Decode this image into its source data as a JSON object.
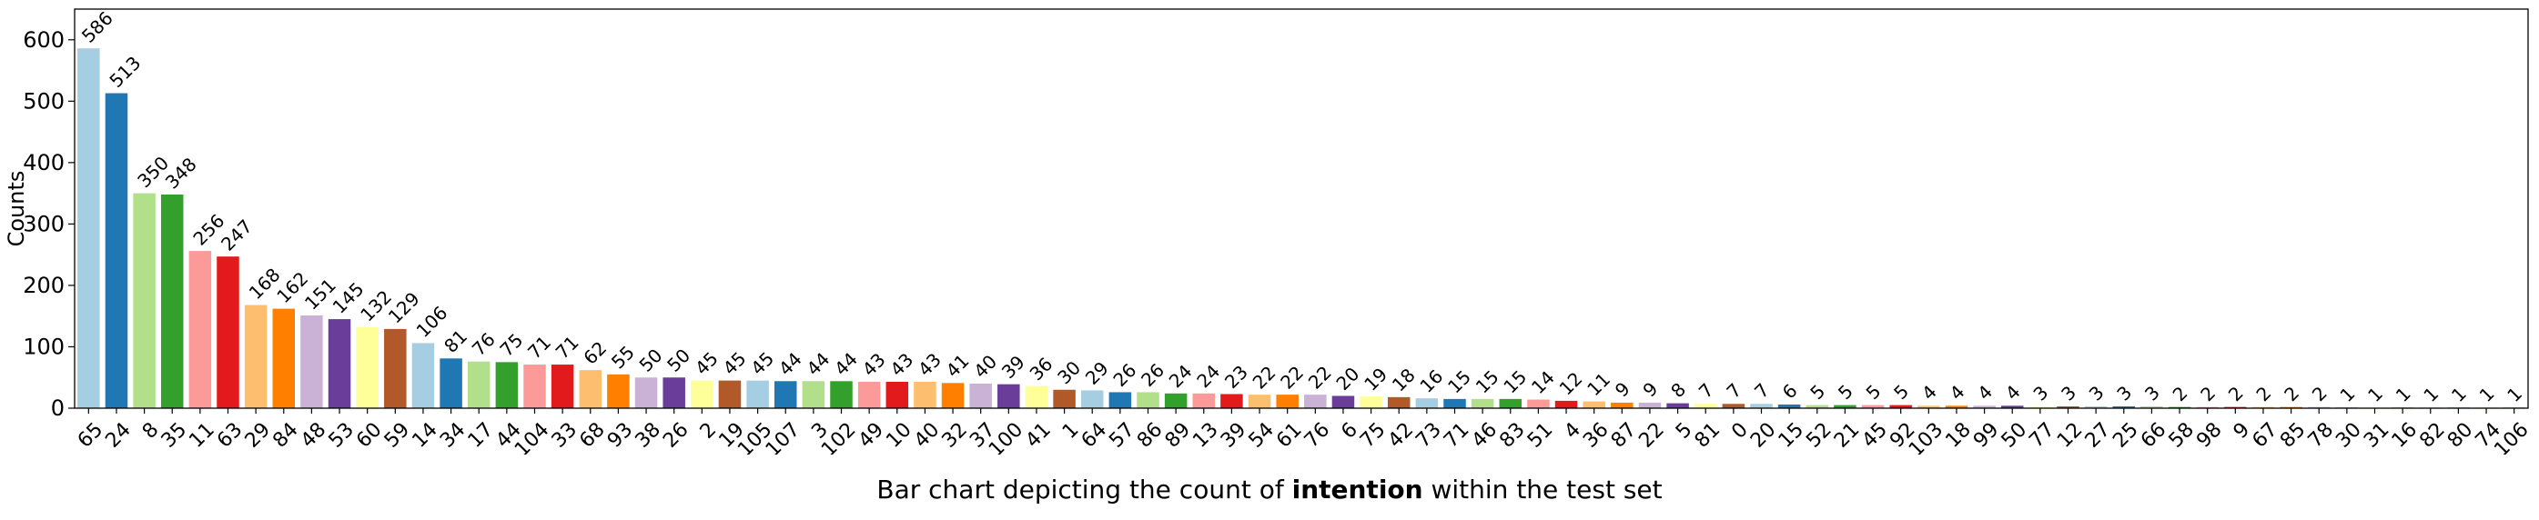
{
  "chart_data": {
    "type": "bar",
    "ylabel": "Counts",
    "xlabel": "",
    "ylim": [
      0,
      650
    ],
    "yticks": [
      0,
      100,
      200,
      300,
      400,
      500,
      600
    ],
    "grid": false,
    "categories": [
      "65",
      "24",
      "8",
      "35",
      "11",
      "63",
      "29",
      "84",
      "48",
      "53",
      "60",
      "59",
      "14",
      "34",
      "17",
      "44",
      "104",
      "33",
      "68",
      "93",
      "38",
      "26",
      "2",
      "19",
      "105",
      "107",
      "3",
      "102",
      "49",
      "10",
      "40",
      "32",
      "37",
      "100",
      "41",
      "1",
      "64",
      "57",
      "86",
      "89",
      "13",
      "39",
      "54",
      "61",
      "76",
      "6",
      "75",
      "42",
      "73",
      "71",
      "46",
      "83",
      "51",
      "4",
      "36",
      "87",
      "22",
      "5",
      "81",
      "0",
      "20",
      "15",
      "52",
      "21",
      "45",
      "92",
      "103",
      "18",
      "99",
      "50",
      "77",
      "12",
      "27",
      "25",
      "66",
      "58",
      "98",
      "9",
      "67",
      "85",
      "78",
      "30",
      "31",
      "16",
      "82",
      "80",
      "74",
      "106"
    ],
    "values": [
      586,
      513,
      350,
      348,
      256,
      247,
      168,
      162,
      151,
      145,
      132,
      129,
      106,
      81,
      76,
      75,
      71,
      71,
      62,
      55,
      50,
      50,
      45,
      45,
      45,
      44,
      44,
      44,
      43,
      43,
      43,
      41,
      40,
      39,
      36,
      30,
      29,
      26,
      26,
      24,
      24,
      23,
      22,
      22,
      22,
      20,
      19,
      18,
      16,
      15,
      15,
      15,
      14,
      12,
      11,
      9,
      9,
      8,
      7,
      7,
      7,
      6,
      5,
      5,
      5,
      5,
      4,
      4,
      4,
      4,
      3,
      3,
      3,
      3,
      3,
      2,
      2,
      2,
      2,
      2,
      2,
      1,
      1,
      1,
      1,
      1,
      1,
      1
    ],
    "palette": [
      "#a6cee3",
      "#1f78b4",
      "#b2df8a",
      "#33a02c",
      "#fb9a99",
      "#e31a1c",
      "#fdbf6f",
      "#ff7f00",
      "#cab2d6",
      "#6a3d9a",
      "#ffff99",
      "#b15928"
    ]
  },
  "caption": {
    "prefix": "Bar chart depicting the count of ",
    "bold": "intention",
    "suffix": " within the test set"
  }
}
